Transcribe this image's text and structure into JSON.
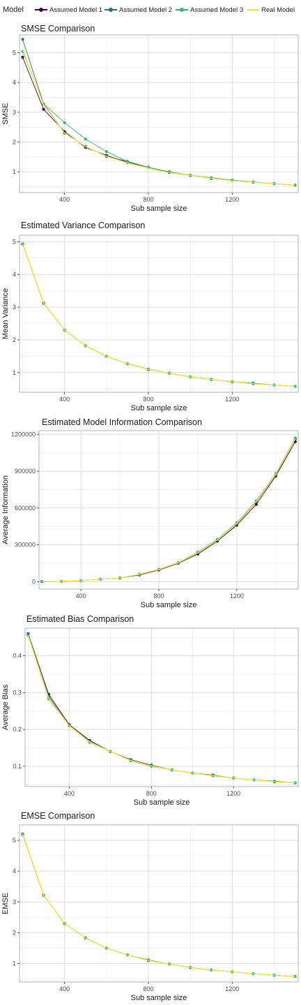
{
  "legend": {
    "title": "Model",
    "entries": [
      {
        "name": "Assumed Model 1",
        "color": "#440154"
      },
      {
        "name": "Assumed Model 2",
        "color": "#31688e"
      },
      {
        "name": "Assumed Model 3",
        "color": "#35b779"
      },
      {
        "name": "Real Model",
        "color": "#fde725"
      }
    ]
  },
  "chart_data": [
    {
      "type": "line",
      "title": "SMSE Comparison",
      "xlabel": "Sub sample size",
      "ylabel": "SMSE",
      "xlim": [
        185,
        1515
      ],
      "ylim": [
        0.3,
        5.6
      ],
      "xticks": [
        400,
        800,
        1200
      ],
      "yticks": [
        1,
        2,
        3,
        4,
        5
      ],
      "ytick_labels": [
        "1",
        "2",
        "3",
        "4",
        "5"
      ],
      "x": [
        200,
        300,
        400,
        500,
        600,
        700,
        800,
        900,
        1000,
        1100,
        1200,
        1300,
        1400,
        1500
      ],
      "series": [
        {
          "name": "Assumed Model 1",
          "values": [
            4.85,
            3.1,
            2.35,
            1.82,
            1.55,
            1.32,
            1.15,
            0.98,
            0.88,
            0.78,
            0.72,
            0.65,
            0.6,
            0.55
          ]
        },
        {
          "name": "Assumed Model 2",
          "values": [
            5.45,
            3.28,
            2.3,
            1.85,
            1.52,
            1.35,
            1.15,
            1.0,
            0.88,
            0.8,
            0.72,
            0.65,
            0.6,
            0.55
          ]
        },
        {
          "name": "Assumed Model 3",
          "values": [
            5.05,
            3.28,
            2.65,
            2.1,
            1.68,
            1.35,
            1.15,
            1.0,
            0.88,
            0.8,
            0.72,
            0.66,
            0.6,
            0.55
          ]
        },
        {
          "name": "Real Model",
          "values": [
            5.1,
            3.25,
            2.3,
            1.85,
            1.52,
            1.3,
            1.12,
            0.97,
            0.88,
            0.78,
            0.7,
            0.65,
            0.6,
            0.55
          ]
        }
      ]
    },
    {
      "type": "line",
      "title": "Estimated Variance Comparison",
      "xlabel": "Sub sample size",
      "ylabel": "Mean Variance",
      "xlim": [
        185,
        1515
      ],
      "ylim": [
        0.4,
        5.2
      ],
      "xticks": [
        400,
        800,
        1200
      ],
      "yticks": [
        1,
        2,
        3,
        4,
        5
      ],
      "ytick_labels": [
        "1",
        "2",
        "3",
        "4",
        "5"
      ],
      "x": [
        200,
        300,
        400,
        500,
        600,
        700,
        800,
        900,
        1000,
        1100,
        1200,
        1300,
        1400,
        1500
      ],
      "series": [
        {
          "name": "Assumed Model 1",
          "values": [
            4.93,
            3.12,
            2.3,
            1.82,
            1.5,
            1.27,
            1.1,
            0.98,
            0.87,
            0.79,
            0.72,
            0.66,
            0.62,
            0.58
          ]
        },
        {
          "name": "Assumed Model 2",
          "values": [
            4.93,
            3.12,
            2.3,
            1.82,
            1.5,
            1.27,
            1.1,
            0.98,
            0.87,
            0.79,
            0.72,
            0.68,
            0.62,
            0.58
          ]
        },
        {
          "name": "Assumed Model 3",
          "values": [
            4.94,
            3.13,
            2.3,
            1.82,
            1.5,
            1.27,
            1.11,
            0.98,
            0.87,
            0.79,
            0.72,
            0.67,
            0.62,
            0.58
          ]
        },
        {
          "name": "Real Model",
          "values": [
            4.93,
            3.12,
            2.3,
            1.82,
            1.5,
            1.27,
            1.1,
            0.98,
            0.87,
            0.79,
            0.72,
            0.66,
            0.62,
            0.58
          ]
        }
      ]
    },
    {
      "type": "line",
      "title": "Estimated Model Information Comparison",
      "xlabel": "Sub sample size",
      "ylabel": "Average Information",
      "xlim": [
        185,
        1515
      ],
      "ylim": [
        -60000,
        1230000
      ],
      "xticks": [
        400,
        800,
        1200
      ],
      "yticks": [
        0,
        300000,
        600000,
        900000,
        1200000
      ],
      "ytick_labels": [
        "0",
        "300000",
        "600000",
        "900000",
        "1200000"
      ],
      "x": [
        200,
        300,
        400,
        500,
        600,
        700,
        800,
        900,
        1000,
        1100,
        1200,
        1300,
        1400,
        1500
      ],
      "series": [
        {
          "name": "Assumed Model 1",
          "values": [
            1000,
            3000,
            8000,
            20000,
            30000,
            55000,
            95000,
            150000,
            225000,
            330000,
            460000,
            630000,
            860000,
            1140000
          ]
        },
        {
          "name": "Assumed Model 2",
          "values": [
            1000,
            3000,
            8000,
            20000,
            30000,
            60000,
            100000,
            155000,
            235000,
            340000,
            470000,
            650000,
            870000,
            1160000
          ]
        },
        {
          "name": "Assumed Model 3",
          "values": [
            1000,
            3000,
            8000,
            20000,
            30000,
            60000,
            100000,
            155000,
            240000,
            345000,
            480000,
            660000,
            880000,
            1170000
          ]
        },
        {
          "name": "Real Model",
          "values": [
            1000,
            3000,
            8000,
            20000,
            30000,
            60000,
            100000,
            155000,
            235000,
            340000,
            475000,
            655000,
            875000,
            1165000
          ]
        }
      ]
    },
    {
      "type": "line",
      "title": "Estimated Bias Comparison",
      "xlabel": "Sub sample size",
      "ylabel": "Average Bias",
      "xlim": [
        185,
        1515
      ],
      "ylim": [
        0.045,
        0.475
      ],
      "xticks": [
        400,
        800,
        1200
      ],
      "yticks": [
        0.1,
        0.2,
        0.3,
        0.4
      ],
      "ytick_labels": [
        "0.1",
        "0.2",
        "0.3",
        "0.4"
      ],
      "x": [
        200,
        300,
        400,
        500,
        600,
        700,
        800,
        900,
        1000,
        1100,
        1200,
        1300,
        1400,
        1500
      ],
      "series": [
        {
          "name": "Assumed Model 1",
          "values": [
            0.46,
            0.295,
            0.213,
            0.17,
            0.14,
            0.118,
            0.103,
            0.09,
            0.082,
            0.076,
            0.068,
            0.063,
            0.058,
            0.055
          ]
        },
        {
          "name": "Assumed Model 2",
          "values": [
            0.46,
            0.29,
            0.21,
            0.168,
            0.14,
            0.117,
            0.102,
            0.09,
            0.082,
            0.075,
            0.068,
            0.063,
            0.058,
            0.055
          ]
        },
        {
          "name": "Assumed Model 3",
          "values": [
            0.455,
            0.283,
            0.21,
            0.165,
            0.14,
            0.115,
            0.1,
            0.09,
            0.082,
            0.074,
            0.068,
            0.063,
            0.06,
            0.055
          ]
        },
        {
          "name": "Real Model",
          "values": [
            0.455,
            0.285,
            0.21,
            0.166,
            0.14,
            0.116,
            0.101,
            0.09,
            0.082,
            0.075,
            0.068,
            0.063,
            0.058,
            0.055
          ]
        }
      ]
    },
    {
      "type": "line",
      "title": "EMSE Comparison",
      "xlabel": "Sub sample size",
      "ylabel": "EMSE",
      "xlim": [
        185,
        1515
      ],
      "ylim": [
        0.4,
        5.5
      ],
      "xticks": [
        400,
        800,
        1200
      ],
      "yticks": [
        1,
        2,
        3,
        4,
        5
      ],
      "ytick_labels": [
        "1",
        "2",
        "3",
        "4",
        "5"
      ],
      "x": [
        200,
        300,
        400,
        500,
        600,
        700,
        800,
        900,
        1000,
        1100,
        1200,
        1300,
        1400,
        1500
      ],
      "series": [
        {
          "name": "Assumed Model 1",
          "values": [
            5.2,
            3.22,
            2.3,
            1.83,
            1.5,
            1.28,
            1.1,
            0.98,
            0.87,
            0.79,
            0.73,
            0.67,
            0.62,
            0.58
          ]
        },
        {
          "name": "Assumed Model 2",
          "values": [
            5.2,
            3.22,
            2.3,
            1.83,
            1.5,
            1.28,
            1.1,
            0.98,
            0.87,
            0.79,
            0.73,
            0.67,
            0.62,
            0.58
          ]
        },
        {
          "name": "Assumed Model 3",
          "values": [
            5.18,
            3.22,
            2.3,
            1.83,
            1.5,
            1.28,
            1.12,
            0.98,
            0.87,
            0.79,
            0.73,
            0.67,
            0.62,
            0.58
          ]
        },
        {
          "name": "Real Model",
          "values": [
            5.2,
            3.22,
            2.3,
            1.83,
            1.5,
            1.28,
            1.1,
            0.98,
            0.87,
            0.79,
            0.73,
            0.67,
            0.62,
            0.58
          ]
        }
      ]
    }
  ]
}
